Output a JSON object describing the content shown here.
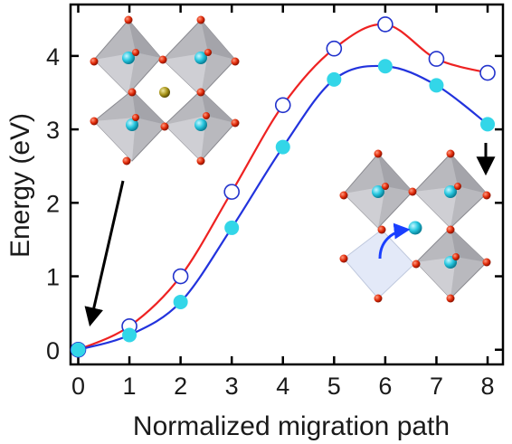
{
  "chart_data": {
    "type": "line",
    "xlabel": "Normalized migration path",
    "ylabel": "Energy (eV)",
    "xlim": [
      -0.15,
      8.3
    ],
    "ylim": [
      -0.2,
      4.7
    ],
    "x_ticks": [
      0,
      1,
      2,
      3,
      4,
      5,
      6,
      7,
      8
    ],
    "y_ticks": [
      0,
      1,
      2,
      3,
      4
    ],
    "grid": false,
    "legend": "none",
    "series": [
      {
        "marker": "open-circle",
        "color": "#ee2222",
        "marker_color": "#2233cc",
        "x": [
          0,
          1,
          2,
          3,
          4,
          5,
          6,
          7,
          8
        ],
        "y": [
          0.0,
          0.32,
          1.0,
          2.15,
          3.33,
          4.1,
          4.43,
          3.96,
          3.77
        ]
      },
      {
        "marker": "filled-circle",
        "color": "#2233dd",
        "marker_color": "#33d6e8",
        "x": [
          0,
          1,
          2,
          3,
          4,
          5,
          6,
          7,
          8
        ],
        "y": [
          0.0,
          0.2,
          0.65,
          1.66,
          2.76,
          3.68,
          3.86,
          3.6,
          3.07
        ]
      }
    ]
  }
}
